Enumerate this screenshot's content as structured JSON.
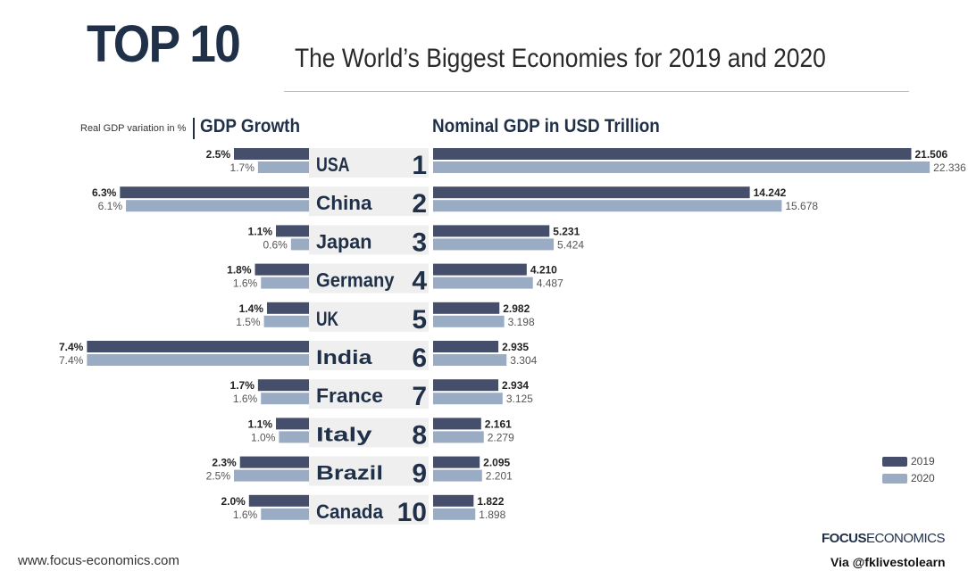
{
  "header": {
    "title": "TOP 10",
    "subtitle": "The World’s Biggest Economies for 2019 and 2020"
  },
  "chart_data": {
    "type": "bar",
    "categories": [
      "USA",
      "China",
      "Japan",
      "Germany",
      "UK",
      "India",
      "France",
      "Italy",
      "Brazil",
      "Canada"
    ],
    "ranks": [
      "1",
      "2",
      "3",
      "4",
      "5",
      "6",
      "7",
      "8",
      "9",
      "10"
    ],
    "growth": {
      "title": "GDP Growth",
      "note": "Real GDP variation in %",
      "series": [
        {
          "name": "2019",
          "values": [
            2.5,
            6.3,
            1.1,
            1.8,
            1.4,
            7.4,
            1.7,
            1.1,
            2.3,
            2.0
          ],
          "labels": [
            "2.5%",
            "6.3%",
            "1.1%",
            "1.8%",
            "1.4%",
            "7.4%",
            "1.7%",
            "1.1%",
            "2.3%",
            "2.0%"
          ]
        },
        {
          "name": "2020",
          "values": [
            1.7,
            6.1,
            0.6,
            1.6,
            1.5,
            7.4,
            1.6,
            1.0,
            2.5,
            1.6
          ],
          "labels": [
            "1.7%",
            "6.1%",
            "0.6%",
            "1.6%",
            "1.5%",
            "7.4%",
            "1.6%",
            "1.0%",
            "2.5%",
            "1.6%"
          ]
        }
      ]
    },
    "gdp": {
      "title": "Nominal GDP in USD Trillion",
      "series": [
        {
          "name": "2019",
          "values": [
            21.506,
            14.242,
            5.231,
            4.21,
            2.982,
            2.935,
            2.934,
            2.161,
            2.095,
            1.822
          ],
          "labels": [
            "21.506",
            "14.242",
            "5.231",
            "4.210",
            "2.982",
            "2.935",
            "2.934",
            "2.161",
            "2.095",
            "1.822"
          ]
        },
        {
          "name": "2020",
          "values": [
            22.336,
            15.678,
            5.424,
            4.487,
            3.198,
            3.304,
            3.125,
            2.279,
            2.201,
            1.898
          ],
          "labels": [
            "22.336",
            "15.678",
            "5.424",
            "4.487",
            "3.198",
            "3.304",
            "3.125",
            "2.279",
            "2.201",
            "1.898"
          ]
        }
      ]
    },
    "legend": {
      "position": "bottom-right",
      "items": [
        "2019",
        "2020"
      ]
    },
    "colors": {
      "y2019": "#454f6b",
      "y2020": "#9aabc4",
      "band": "#efefef"
    }
  },
  "footer": {
    "url": "www.focus-economics.com",
    "brand_bold": "FOCUS",
    "brand_light": "ECONOMICS",
    "via": "Via @fklivestolearn"
  }
}
